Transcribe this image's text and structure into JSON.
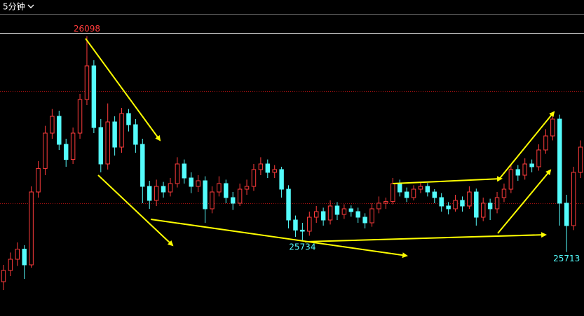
{
  "period_label": "5分钟",
  "chart_data": {
    "type": "candlestick",
    "up_color": "#ff3c3c",
    "down_color": "#54fcfc",
    "ref_line_color": "#a01010",
    "ylim": [
      25600,
      26100
    ],
    "ref_lines": [
      25800,
      26000
    ],
    "marked_extremes": [
      26098,
      25734,
      25713
    ],
    "open": [
      25660,
      25680,
      25700,
      25718,
      25690,
      25820,
      25862,
      25925,
      25955,
      25905,
      25878,
      25925,
      25985,
      26045,
      25935,
      25870,
      25945,
      25900,
      25960,
      25940,
      25905,
      25830,
      25805,
      25830,
      25820,
      25835,
      25870,
      25845,
      25830,
      25840,
      25790,
      25820,
      25835,
      25810,
      25800,
      25825,
      25830,
      25860,
      25870,
      25855,
      25860,
      25825,
      25770,
      25752,
      25750,
      25775,
      25785,
      25770,
      25795,
      25780,
      25790,
      25785,
      25775,
      25765,
      25790,
      25800,
      25803,
      25835,
      25820,
      25810,
      25825,
      25830,
      25820,
      25810,
      25795,
      25790,
      25805,
      25795,
      25820,
      25775,
      25800,
      25790,
      25810,
      25825,
      25860,
      25850,
      25870,
      25865,
      25895,
      25920,
      25950,
      25800,
      25760,
      25855
    ],
    "high": [
      25690,
      25712,
      25730,
      25725,
      25830,
      25875,
      25938,
      25968,
      25965,
      25915,
      25935,
      25995,
      26098,
      26055,
      25950,
      25978,
      25955,
      25970,
      25968,
      25950,
      25915,
      25840,
      25842,
      25838,
      25845,
      25882,
      25878,
      25855,
      25850,
      25848,
      25830,
      25848,
      25842,
      25820,
      25835,
      25842,
      25870,
      25882,
      25878,
      25868,
      25865,
      25832,
      25778,
      25765,
      25785,
      25795,
      25792,
      25805,
      25802,
      25798,
      25796,
      25792,
      25782,
      25800,
      25812,
      25810,
      25845,
      25842,
      25828,
      25832,
      25838,
      25836,
      25825,
      25818,
      25802,
      25815,
      25812,
      25830,
      25826,
      25810,
      25808,
      25820,
      25835,
      25870,
      25868,
      25880,
      25878,
      25905,
      25932,
      25962,
      25958,
      25815,
      25865,
      25912
    ],
    "low": [
      25645,
      25670,
      25688,
      25665,
      25685,
      25810,
      25850,
      25915,
      25895,
      25865,
      25870,
      25915,
      25975,
      25925,
      25855,
      25860,
      25885,
      25890,
      25928,
      25890,
      25800,
      25790,
      25795,
      25810,
      25812,
      25828,
      25835,
      25818,
      25820,
      25765,
      25782,
      25812,
      25800,
      25788,
      25795,
      25815,
      25822,
      25850,
      25845,
      25845,
      25810,
      25755,
      25740,
      25734,
      25742,
      25765,
      25760,
      25762,
      25770,
      25772,
      25776,
      25765,
      25755,
      25758,
      25782,
      25790,
      25798,
      25812,
      25802,
      25805,
      25818,
      25812,
      25800,
      25785,
      25780,
      25785,
      25785,
      25790,
      25760,
      25768,
      25770,
      25782,
      25802,
      25818,
      25840,
      25842,
      25855,
      25858,
      25888,
      25912,
      25760,
      25713,
      25752,
      25845
    ],
    "close": [
      25680,
      25700,
      25718,
      25690,
      25820,
      25862,
      25925,
      25955,
      25905,
      25878,
      25925,
      25985,
      26045,
      25935,
      25870,
      25945,
      25900,
      25960,
      25940,
      25905,
      25830,
      25805,
      25830,
      25820,
      25835,
      25870,
      25845,
      25830,
      25840,
      25790,
      25820,
      25835,
      25810,
      25800,
      25825,
      25830,
      25860,
      25870,
      25855,
      25860,
      25825,
      25770,
      25752,
      25750,
      25775,
      25785,
      25770,
      25795,
      25780,
      25790,
      25785,
      25775,
      25765,
      25790,
      25800,
      25803,
      25835,
      25820,
      25810,
      25825,
      25830,
      25820,
      25810,
      25795,
      25790,
      25805,
      25795,
      25820,
      25775,
      25800,
      25790,
      25810,
      25825,
      25860,
      25850,
      25870,
      25865,
      25895,
      25920,
      25950,
      25800,
      25760,
      25855,
      25900
    ]
  }
}
